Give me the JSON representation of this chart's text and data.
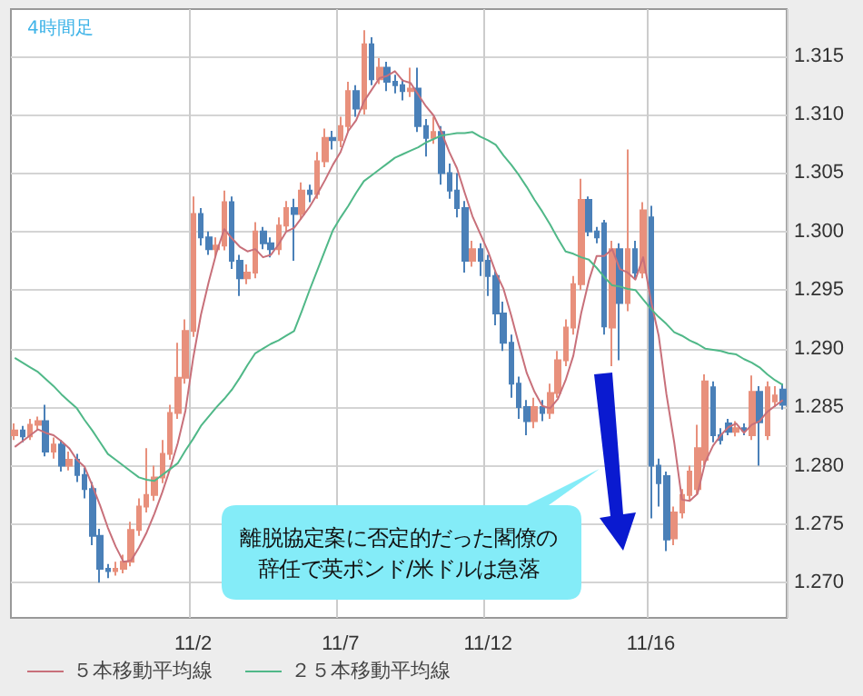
{
  "chart_data": {
    "type": "candlestick",
    "title": "4時間足",
    "categories": [
      null,
      null,
      null,
      null,
      null,
      null,
      null,
      null,
      null,
      null,
      null,
      null,
      null,
      null,
      null,
      null,
      null,
      null,
      null,
      null,
      null,
      null,
      null,
      "11/2",
      null,
      null,
      null,
      null,
      null,
      null,
      null,
      null,
      null,
      null,
      null,
      null,
      null,
      null,
      null,
      null,
      null,
      null,
      "11/7",
      null,
      null,
      null,
      null,
      null,
      null,
      null,
      null,
      null,
      null,
      null,
      null,
      null,
      null,
      null,
      null,
      null,
      null,
      "11/12",
      null,
      null,
      null,
      null,
      null,
      null,
      null,
      null,
      null,
      null,
      null,
      null,
      null,
      null,
      null,
      null,
      null,
      null,
      null,
      null,
      "11/16",
      null,
      null,
      null,
      null,
      null,
      null,
      null,
      null,
      null,
      null,
      null,
      null,
      null,
      null,
      null,
      null,
      null
    ],
    "ylim": [
      1.267,
      1.319
    ],
    "yticks": [
      {
        "value": 1.27,
        "label": "1.270"
      },
      1.275,
      {
        "value": 1.28,
        "label": "1.280"
      },
      1.285,
      {
        "value": 1.29,
        "label": "1.290"
      },
      1.295,
      {
        "value": 1.3,
        "label": "1.300"
      },
      1.305,
      {
        "value": 1.31,
        "label": "1.310"
      },
      1.315
    ],
    "grid": true,
    "legend": "bottom left",
    "marker": "none",
    "annotations": [
      "離脱協定案に否定的だった閣僚の辞任で英ポンド/米ドルは急落"
    ],
    "series": [
      {
        "type": "candlestick",
        "ohlc": [
          [
            1.2826,
            1.2836,
            1.2822,
            1.283
          ],
          [
            1.283,
            1.2834,
            1.282,
            1.2825
          ],
          [
            1.2825,
            1.284,
            1.2822,
            1.2835
          ],
          [
            1.2835,
            1.2842,
            1.283,
            1.2838
          ],
          [
            1.2838,
            1.2852,
            1.2808,
            1.2812
          ],
          [
            1.2812,
            1.2824,
            1.2806,
            1.2818
          ],
          [
            1.2818,
            1.2822,
            1.2795,
            1.28
          ],
          [
            1.28,
            1.2812,
            1.2796,
            1.2805
          ],
          [
            1.2805,
            1.281,
            1.2786,
            1.2792
          ],
          [
            1.2792,
            1.2798,
            1.2772,
            1.278
          ],
          [
            1.278,
            1.2786,
            1.2732,
            1.274
          ],
          [
            1.274,
            1.2746,
            1.27,
            1.2712
          ],
          [
            1.2712,
            1.2716,
            1.2704,
            1.271
          ],
          [
            1.271,
            1.2718,
            1.2706,
            1.2712
          ],
          [
            1.2712,
            1.2724,
            1.2708,
            1.2718
          ],
          [
            1.2718,
            1.2752,
            1.2714,
            1.2745
          ],
          [
            1.2745,
            1.2772,
            1.274,
            1.2765
          ],
          [
            1.2765,
            1.2815,
            1.276,
            1.2775
          ],
          [
            1.2775,
            1.28,
            1.277,
            1.279
          ],
          [
            1.279,
            1.2822,
            1.2785,
            1.281
          ],
          [
            1.281,
            1.2852,
            1.2805,
            1.2845
          ],
          [
            1.2845,
            1.2905,
            1.284,
            1.2875
          ],
          [
            1.2875,
            1.2925,
            1.287,
            1.2915
          ],
          [
            1.2915,
            1.303,
            1.291,
            1.3015
          ],
          [
            1.3015,
            1.302,
            1.2988,
            1.2995
          ],
          [
            1.2995,
            1.3,
            1.298,
            1.2985
          ],
          [
            1.2985,
            1.2995,
            1.2978,
            1.2988
          ],
          [
            1.2988,
            1.3035,
            1.2984,
            1.3025
          ],
          [
            1.3025,
            1.303,
            1.2968,
            1.2975
          ],
          [
            1.2975,
            1.298,
            1.2945,
            1.296
          ],
          [
            1.296,
            1.2972,
            1.2955,
            1.2965
          ],
          [
            1.2965,
            1.3008,
            1.296,
            1.3
          ],
          [
            1.3,
            1.3004,
            1.2985,
            1.299
          ],
          [
            1.299,
            1.2995,
            1.2978,
            1.2985
          ],
          [
            1.2985,
            1.3012,
            1.298,
            1.3005
          ],
          [
            1.3005,
            1.3026,
            1.3,
            1.302
          ],
          [
            1.302,
            1.3028,
            1.2975,
            1.3015
          ],
          [
            1.3015,
            1.3042,
            1.301,
            1.3035
          ],
          [
            1.3035,
            1.304,
            1.3025,
            1.3032
          ],
          [
            1.3032,
            1.3068,
            1.3028,
            1.306
          ],
          [
            1.306,
            1.3088,
            1.3055,
            1.308
          ],
          [
            1.308,
            1.3086,
            1.307,
            1.3078
          ],
          [
            1.3078,
            1.3098,
            1.3072,
            1.309
          ],
          [
            1.309,
            1.3128,
            1.3085,
            1.312
          ],
          [
            1.312,
            1.3125,
            1.3098,
            1.3105
          ],
          [
            1.3105,
            1.3172,
            1.31,
            1.316
          ],
          [
            1.316,
            1.3166,
            1.3125,
            1.313
          ],
          [
            1.313,
            1.3148,
            1.3126,
            1.314
          ],
          [
            1.314,
            1.3145,
            1.312,
            1.3128
          ],
          [
            1.3128,
            1.3134,
            1.3118,
            1.3125
          ],
          [
            1.3125,
            1.313,
            1.3112,
            1.312
          ],
          [
            1.312,
            1.314,
            1.3115,
            1.3122
          ],
          [
            1.3122,
            1.314,
            1.3085,
            1.309
          ],
          [
            1.309,
            1.3096,
            1.3064,
            1.308
          ],
          [
            1.308,
            1.3098,
            1.3075,
            1.3085
          ],
          [
            1.3085,
            1.309,
            1.304,
            1.305
          ],
          [
            1.305,
            1.3058,
            1.3028,
            1.3035
          ],
          [
            1.3035,
            1.305,
            1.3012,
            1.302
          ],
          [
            1.302,
            1.3026,
            1.2965,
            1.2975
          ],
          [
            1.2975,
            1.2992,
            1.297,
            1.2985
          ],
          [
            1.2985,
            1.299,
            1.2962,
            1.2975
          ],
          [
            1.2975,
            1.298,
            1.2945,
            1.2962
          ],
          [
            1.2962,
            1.2966,
            1.292,
            1.293
          ],
          [
            1.293,
            1.294,
            1.2898,
            1.2905
          ],
          [
            1.2905,
            1.2912,
            1.2858,
            1.287
          ],
          [
            1.287,
            1.2876,
            1.284,
            1.285
          ],
          [
            1.285,
            1.2856,
            1.2826,
            1.2838
          ],
          [
            1.2838,
            1.2858,
            1.2832,
            1.285
          ],
          [
            1.285,
            1.2856,
            1.2838,
            1.2845
          ],
          [
            1.2845,
            1.287,
            1.284,
            1.2862
          ],
          [
            1.2862,
            1.2898,
            1.2858,
            1.289
          ],
          [
            1.289,
            1.2925,
            1.2885,
            1.2918
          ],
          [
            1.2918,
            1.2962,
            1.2912,
            1.2955
          ],
          [
            1.2955,
            1.3045,
            1.295,
            1.3027
          ],
          [
            1.3027,
            1.303,
            1.2996,
            1.3
          ],
          [
            1.3,
            1.3004,
            1.299,
            1.2995
          ],
          [
            1.3007,
            1.301,
            1.2912,
            1.2919
          ],
          [
            1.2918,
            1.2992,
            1.2885,
            1.2985
          ],
          [
            1.2985,
            1.299,
            1.289,
            1.2939
          ],
          [
            1.2939,
            1.307,
            1.2932,
            1.2985
          ],
          [
            1.2985,
            1.2992,
            1.296,
            1.2965
          ],
          [
            1.2965,
            1.3025,
            1.296,
            1.3018
          ],
          [
            1.3012,
            1.3022,
            1.2755,
            1.28
          ],
          [
            1.28,
            1.2806,
            1.2765,
            1.2785
          ],
          [
            1.2791,
            1.2795,
            1.2727,
            1.2737
          ],
          [
            1.2738,
            1.2765,
            1.2732,
            1.276
          ],
          [
            1.276,
            1.278,
            1.2755,
            1.2775
          ],
          [
            1.2775,
            1.28,
            1.277,
            1.2795
          ],
          [
            1.278,
            1.2835,
            1.2776,
            1.2815
          ],
          [
            1.2805,
            1.2878,
            1.28,
            1.2872
          ],
          [
            1.2867,
            1.2872,
            1.282,
            1.2826
          ],
          [
            1.2826,
            1.2832,
            1.2818,
            1.2822
          ],
          [
            1.2836,
            1.284,
            1.2826,
            1.2829
          ],
          [
            1.2829,
            1.2838,
            1.2825,
            1.2832
          ],
          [
            1.2832,
            1.2836,
            1.2826,
            1.283
          ],
          [
            1.2826,
            1.2877,
            1.2822,
            1.2863
          ],
          [
            1.2863,
            1.2868,
            1.28,
            1.2837
          ],
          [
            1.2826,
            1.2872,
            1.2822,
            1.2867
          ],
          [
            1.2855,
            1.2868,
            1.285,
            1.286
          ],
          [
            1.2865,
            1.287,
            1.2848,
            1.2852
          ]
        ],
        "colors": [
          "#e8907c",
          "#4a80b8",
          "#e8907c",
          "#e8907c",
          "#4a80b8",
          "#e8907c",
          "#4a80b8",
          "#e8907c",
          "#4a80b8",
          "#4a80b8",
          "#4a80b8",
          "#4a80b8",
          "#4a80b8",
          "#e8907c",
          "#e8907c",
          "#e8907c",
          "#e8907c",
          "#e8907c",
          "#e8907c",
          "#e8907c",
          "#e8907c",
          "#e8907c",
          "#e8907c",
          "#e8907c",
          "#4a80b8",
          "#4a80b8",
          "#e8907c",
          "#e8907c",
          "#4a80b8",
          "#4a80b8",
          "#e8907c",
          "#e8907c",
          "#4a80b8",
          "#4a80b8",
          "#e8907c",
          "#e8907c",
          "#4a80b8",
          "#e8907c",
          "#4a80b8",
          "#e8907c",
          "#e8907c",
          "#4a80b8",
          "#e8907c",
          "#e8907c",
          "#4a80b8",
          "#e8907c",
          "#4a80b8",
          "#e8907c",
          "#4a80b8",
          "#4a80b8",
          "#4a80b8",
          "#e8907c",
          "#4a80b8",
          "#4a80b8",
          "#e8907c",
          "#4a80b8",
          "#4a80b8",
          "#4a80b8",
          "#4a80b8",
          "#e8907c",
          "#4a80b8",
          "#4a80b8",
          "#4a80b8",
          "#4a80b8",
          "#4a80b8",
          "#4a80b8",
          "#4a80b8",
          "#e8907c",
          "#4a80b8",
          "#e8907c",
          "#e8907c",
          "#e8907c",
          "#e8907c",
          "#e8907c",
          "#4a80b8",
          "#4a80b8",
          "#4a80b8",
          "#e8907c",
          "#4a80b8",
          "#e8907c",
          "#4a80b8",
          "#e8907c",
          "#4a80b8",
          "#4a80b8",
          "#4a80b8",
          "#e8907c",
          "#e8907c",
          "#e8907c",
          "#e8907c",
          "#e8907c",
          "#4a80b8",
          "#4a80b8",
          "#4a80b8",
          "#e8907c",
          "#4a80b8",
          "#e8907c",
          "#4a80b8",
          "#e8907c",
          "#e8907c",
          "#4a80b8"
        ]
      },
      {
        "type": "line",
        "name": "５本移動平均線",
        "color": "#c8707a",
        "values": [
          1.2816,
          1.2821,
          1.2826,
          1.2831,
          1.2828,
          1.2826,
          1.2821,
          1.2815,
          1.2805,
          1.2799,
          1.2783,
          1.2766,
          1.2747,
          1.2731,
          1.2718,
          1.2719,
          1.273,
          1.2743,
          1.2759,
          1.2777,
          1.2797,
          1.2819,
          1.2847,
          1.2892,
          1.2929,
          1.2957,
          1.2982,
          1.3002,
          1.2994,
          1.2987,
          1.2983,
          1.2985,
          1.2978,
          1.298,
          1.2989,
          1.3,
          1.3003,
          1.3012,
          1.3021,
          1.3032,
          1.3044,
          1.3057,
          1.3068,
          1.3086,
          1.3095,
          1.3111,
          1.3121,
          1.3131,
          1.3133,
          1.3137,
          1.3129,
          1.3127,
          1.3117,
          1.3107,
          1.3099,
          1.3085,
          1.3068,
          1.3054,
          1.3033,
          1.3013,
          1.2998,
          1.2983,
          1.2965,
          1.2951,
          1.2928,
          1.2903,
          1.2879,
          1.2863,
          1.2851,
          1.2849,
          1.2857,
          1.2873,
          1.2894,
          1.293,
          1.2958,
          1.2979,
          1.2979,
          1.2985,
          1.2968,
          1.2965,
          1.2959,
          1.2978,
          1.2941,
          1.2911,
          1.2861,
          1.282,
          1.2771,
          1.277,
          1.2776,
          1.2803,
          1.2817,
          1.2826,
          1.2833,
          1.2836,
          1.2828,
          1.2835,
          1.2838,
          1.2846,
          1.2851,
          1.2856
        ]
      },
      {
        "type": "line",
        "name": "２５本移動平均線",
        "color": "#50b888",
        "values": [
          1.2892,
          1.2888,
          1.2884,
          1.288,
          1.2874,
          1.2868,
          1.2861,
          1.2855,
          1.2849,
          1.2839,
          1.283,
          1.282,
          1.281,
          1.2805,
          1.28,
          1.2795,
          1.279,
          1.2788,
          1.2787,
          1.2792,
          1.2797,
          1.2802,
          1.2813,
          1.2823,
          1.2834,
          1.2842,
          1.285,
          1.2857,
          1.2865,
          1.2875,
          1.2886,
          1.2896,
          1.29,
          1.2904,
          1.2907,
          1.2911,
          1.2915,
          1.2932,
          1.295,
          1.2967,
          1.2984,
          1.3001,
          1.3012,
          1.3022,
          1.3033,
          1.3043,
          1.3048,
          1.3053,
          1.3058,
          1.3063,
          1.3066,
          1.3069,
          1.3072,
          1.3076,
          1.3079,
          1.3082,
          1.3083,
          1.3084,
          1.3084,
          1.3085,
          1.3081,
          1.3078,
          1.3074,
          1.3065,
          1.3057,
          1.3048,
          1.3038,
          1.3027,
          1.3017,
          1.3006,
          1.2994,
          1.2983,
          1.2981,
          1.2978,
          1.2976,
          1.2969,
          1.2961,
          1.2954,
          1.2953,
          1.2951,
          1.295,
          1.2942,
          1.2934,
          1.2927,
          1.2921,
          1.2914,
          1.2911,
          1.2907,
          1.2904,
          1.29,
          1.2899,
          1.2898,
          1.2896,
          1.2895,
          1.2891,
          1.2888,
          1.2884,
          1.2878,
          1.2873,
          1.2869
        ]
      }
    ]
  }
}
